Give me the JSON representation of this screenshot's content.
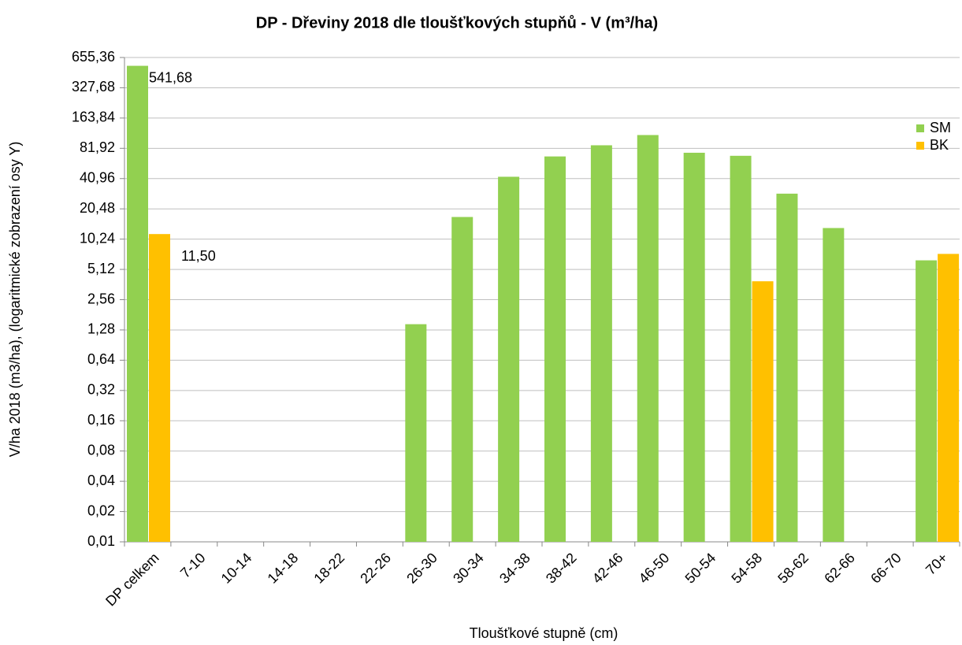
{
  "chart_data": {
    "type": "bar",
    "title": "DP - Dřeviny 2018 dle tloušťkových stupňů - V (m³/ha)",
    "x_label": "Tloušťkové stupně (cm)",
    "y_label": "V/ha 2018 (m3/ha), (logaritmické zobrazení osy Y)",
    "categories": [
      "DP celkem",
      "7-10",
      "10-14",
      "14-18",
      "18-22",
      "22-26",
      "26-30",
      "30-34",
      "34-38",
      "38-42",
      "42-46",
      "46-50",
      "50-54",
      "54-58",
      "58-62",
      "62-66",
      "66-70",
      "70+"
    ],
    "series": [
      {
        "name": "SM",
        "color": "#92d050",
        "values": [
          541.68,
          null,
          null,
          null,
          null,
          null,
          1.46,
          17,
          42.7,
          68,
          87.8,
          111,
          74,
          69,
          29,
          13.2,
          null,
          6.3
        ],
        "value_labels": [
          "541,68",
          null,
          null,
          null,
          null,
          null,
          null,
          null,
          null,
          null,
          null,
          null,
          null,
          null,
          null,
          null,
          null,
          null
        ]
      },
      {
        "name": "BK",
        "color": "#ffc000",
        "values": [
          11.5,
          null,
          null,
          null,
          null,
          null,
          null,
          null,
          null,
          null,
          null,
          null,
          null,
          3.9,
          null,
          null,
          null,
          7.3
        ],
        "value_labels": [
          "11,50",
          null,
          null,
          null,
          null,
          null,
          null,
          null,
          null,
          null,
          null,
          null,
          null,
          null,
          null,
          null,
          null,
          null
        ]
      }
    ],
    "ylim": [
      0.01,
      655.36
    ],
    "log_scale": true,
    "log_base": 2,
    "yticks": [
      {
        "value": 0.01,
        "label": "0,01"
      },
      {
        "value": 0.02,
        "label": "0,02"
      },
      {
        "value": 0.04,
        "label": "0,04"
      },
      {
        "value": 0.08,
        "label": "0,08"
      },
      {
        "value": 0.16,
        "label": "0,16"
      },
      {
        "value": 0.32,
        "label": "0,32"
      },
      {
        "value": 0.64,
        "label": "0,64"
      },
      {
        "value": 1.28,
        "label": "1,28"
      },
      {
        "value": 2.56,
        "label": "2,56"
      },
      {
        "value": 5.12,
        "label": "5,12"
      },
      {
        "value": 10.24,
        "label": "10,24"
      },
      {
        "value": 20.48,
        "label": "20,48"
      },
      {
        "value": 40.96,
        "label": "40,96"
      },
      {
        "value": 81.92,
        "label": "81,92"
      },
      {
        "value": 163.84,
        "label": "163,84"
      },
      {
        "value": 327.68,
        "label": "327,68"
      },
      {
        "value": 655.36,
        "label": "655,36"
      }
    ],
    "grid": true,
    "legend": "right"
  }
}
